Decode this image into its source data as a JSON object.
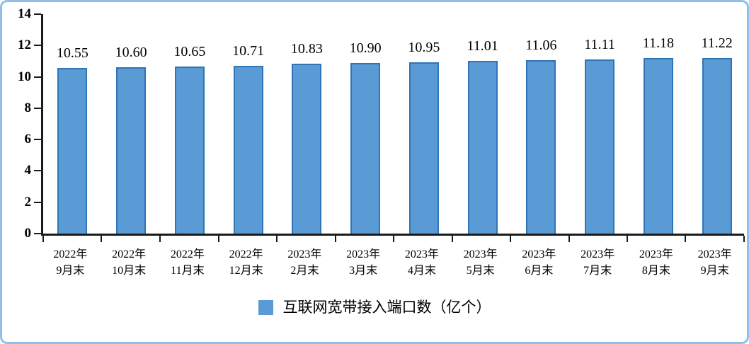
{
  "chart_data": {
    "type": "bar",
    "categories": [
      "2022年9月末",
      "2022年10月末",
      "2022年11月末",
      "2022年12月末",
      "2023年2月末",
      "2023年3月末",
      "2023年4月末",
      "2023年5月末",
      "2023年6月末",
      "2023年7月末",
      "2023年8月末",
      "2023年9月末"
    ],
    "values": [
      10.55,
      10.6,
      10.65,
      10.71,
      10.83,
      10.9,
      10.95,
      11.01,
      11.06,
      11.11,
      11.18,
      11.22
    ],
    "value_labels": [
      "10.55",
      "10.60",
      "10.65",
      "10.71",
      "10.83",
      "10.90",
      "10.95",
      "11.01",
      "11.06",
      "11.11",
      "11.18",
      "11.22"
    ],
    "title": "",
    "xlabel": "",
    "ylabel": "",
    "ylim": [
      0,
      14
    ],
    "yticks": [
      0,
      2,
      4,
      6,
      8,
      10,
      12,
      14
    ],
    "grid": "off",
    "legend_position": "bottom-center",
    "legend": "互联网宽带接入端口数（亿个）",
    "colors": {
      "bar_fill": "#5b9bd5",
      "bar_border": "#2e75b6",
      "axis": "#1a1a1a",
      "frame_border": "#8fc0ec",
      "text": "#000000"
    }
  }
}
